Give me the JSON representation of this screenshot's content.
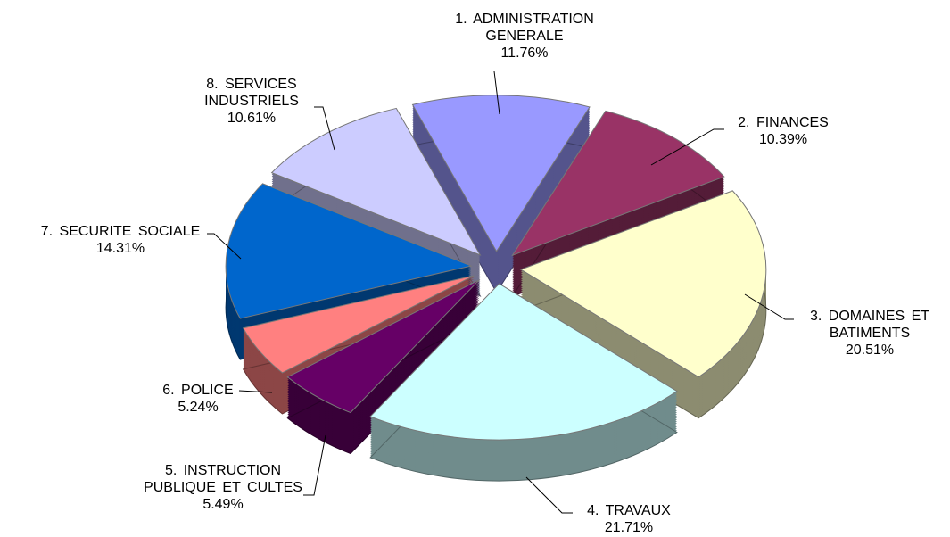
{
  "chart_data": {
    "type": "pie",
    "categories": [
      "1. ADMINISTRATION GENERALE",
      "2. FINANCES",
      "3. DOMAINES ET BATIMENTS",
      "4. TRAVAUX",
      "5. INSTRUCTION PUBLIQUE ET CULTES",
      "6. POLICE",
      "7. SECURITE SOCIALE",
      "8. SERVICES INDUSTRIELS"
    ],
    "values": [
      11.76,
      10.39,
      20.51,
      21.71,
      5.49,
      5.24,
      14.31,
      10.61
    ],
    "value_labels": [
      "11.76%",
      "10.39%",
      "20.51%",
      "21.71%",
      "5.49%",
      "5.24%",
      "14.31%",
      "10.61%"
    ],
    "colors": [
      "#9999ff",
      "#993366",
      "#ffffcc",
      "#ccffff",
      "#660066",
      "#ff8080",
      "#0066cc",
      "#ccccff"
    ]
  }
}
